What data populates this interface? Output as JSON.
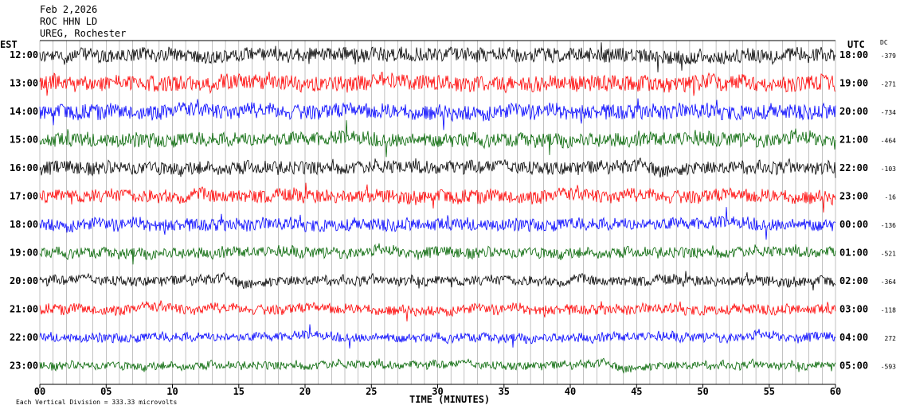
{
  "header": {
    "date": "Feb 2,2026",
    "station": "ROC HHN LD",
    "location": "UREG, Rochester"
  },
  "chart_data": {
    "type": "line",
    "title": "",
    "xlabel": "TIME (MINUTES)",
    "left_axis_label": "EST",
    "right_axis_label": "UTC",
    "dc_label": "DC",
    "xlim": [
      0,
      60
    ],
    "x_ticks": [
      "00",
      "05",
      "10",
      "15",
      "20",
      "25",
      "30",
      "35",
      "40",
      "45",
      "50",
      "55",
      "60"
    ],
    "vertical_division_note": "Each Vertical Division =  333.33 microvolts",
    "trace_colors": [
      "#000000",
      "#ff0000",
      "#0000ff",
      "#006400"
    ],
    "rows": [
      {
        "est": "12:00",
        "utc": "18:00",
        "dc": "-379",
        "amplitude": 0.8
      },
      {
        "est": "13:00",
        "utc": "19:00",
        "dc": "-271",
        "amplitude": 0.9
      },
      {
        "est": "14:00",
        "utc": "20:00",
        "dc": "-734",
        "amplitude": 0.85
      },
      {
        "est": "15:00",
        "utc": "21:00",
        "dc": "-464",
        "amplitude": 0.8
      },
      {
        "est": "16:00",
        "utc": "22:00",
        "dc": "-103",
        "amplitude": 0.75
      },
      {
        "est": "17:00",
        "utc": "23:00",
        "dc": "-16",
        "amplitude": 0.75
      },
      {
        "est": "18:00",
        "utc": "00:00",
        "dc": "-136",
        "amplitude": 0.7
      },
      {
        "est": "19:00",
        "utc": "01:00",
        "dc": "-521",
        "amplitude": 0.6
      },
      {
        "est": "20:00",
        "utc": "02:00",
        "dc": "-364",
        "amplitude": 0.55
      },
      {
        "est": "21:00",
        "utc": "03:00",
        "dc": "-118",
        "amplitude": 0.55
      },
      {
        "est": "22:00",
        "utc": "04:00",
        "dc": "272",
        "amplitude": 0.5
      },
      {
        "est": "23:00",
        "utc": "05:00",
        "dc": "-593",
        "amplitude": 0.45
      }
    ]
  }
}
